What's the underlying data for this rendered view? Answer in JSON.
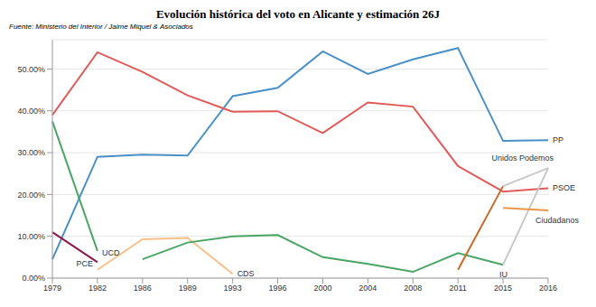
{
  "chart_data": {
    "type": "line",
    "title": "Evolución histórica del voto en Alicante y estimación 26J",
    "subtitle": "Fuente: Ministerio del Interior / Jaime Miquel & Asociados",
    "categories": [
      "1979",
      "1982",
      "1986",
      "1989",
      "1993",
      "1996",
      "2000",
      "2004",
      "2008",
      "2011",
      "2015",
      "2016"
    ],
    "series": [
      {
        "name": "PP",
        "color": "#4a90c8",
        "values": [
          4.5,
          29,
          29.5,
          29.3,
          43.5,
          45.5,
          54.2,
          48.8,
          52.3,
          55,
          32.8,
          33
        ]
      },
      {
        "name": "PSOE",
        "color": "#e05a5a",
        "values": [
          39,
          54,
          49.3,
          43.7,
          39.8,
          39.9,
          34.7,
          42,
          41,
          26.8,
          20.7,
          21.5
        ]
      },
      {
        "name": "UCD",
        "color": "#4aa564",
        "values": [
          37.5,
          6.5,
          null,
          null,
          null,
          null,
          null,
          null,
          null,
          null,
          null,
          null
        ]
      },
      {
        "name": "PCE",
        "color": "#8b1a4a",
        "values": [
          11,
          3.8,
          null,
          null,
          null,
          null,
          null,
          null,
          null,
          null,
          null,
          null
        ]
      },
      {
        "name": "CDS",
        "color": "#f8c08a",
        "values": [
          null,
          2,
          9.3,
          9.6,
          1,
          null,
          null,
          null,
          null,
          null,
          null,
          null
        ]
      },
      {
        "name": "IU",
        "color": "#4aa564",
        "values": [
          null,
          null,
          4.5,
          8.5,
          10,
          10.3,
          5,
          3.4,
          1.5,
          6,
          3.2,
          null
        ]
      },
      {
        "color": "#c86a2a",
        "values": [
          null,
          null,
          null,
          null,
          null,
          null,
          null,
          null,
          null,
          2,
          22,
          null
        ]
      },
      {
        "name": "Unidos Podemos",
        "color": "#c8c8c8",
        "values": [
          null,
          null,
          null,
          null,
          null,
          null,
          null,
          null,
          null,
          null,
          22,
          26.3
        ]
      },
      {
        "color": "#c8c8c8",
        "values": [
          null,
          null,
          null,
          null,
          null,
          null,
          null,
          null,
          null,
          null,
          3.2,
          26.3
        ]
      },
      {
        "name": "Ciudadanos",
        "color": "#e8974a",
        "values": [
          null,
          null,
          null,
          null,
          null,
          null,
          null,
          null,
          null,
          null,
          16.8,
          16.2
        ]
      }
    ],
    "ylim": [
      0,
      57
    ],
    "yticks": [
      {
        "value": 0,
        "label": "0.00%"
      },
      {
        "value": 10,
        "label": "10.00%"
      },
      {
        "value": 20,
        "label": "20.00%"
      },
      {
        "value": 30,
        "label": "30.00%"
      },
      {
        "value": 40,
        "label": "40.00%"
      },
      {
        "value": 50,
        "label": "50.00%"
      }
    ],
    "grid": true
  }
}
